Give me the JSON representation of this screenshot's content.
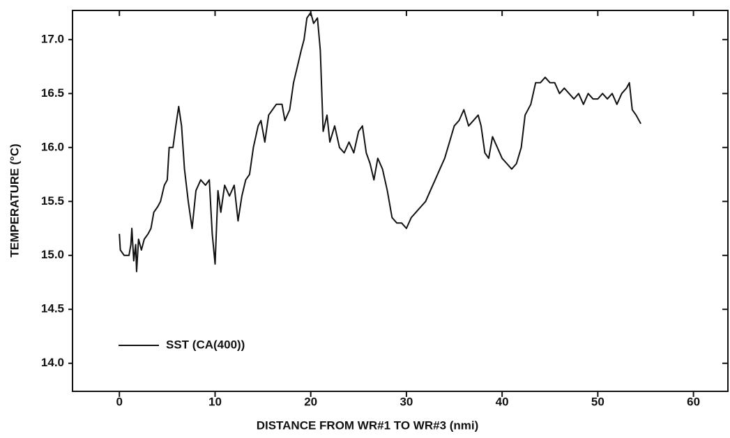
{
  "chart_data": {
    "type": "line",
    "xlabel": "DISTANCE FROM WR#1 TO WR#3 (nmi)",
    "ylabel": "TEMPERATURE (°C)",
    "xlim": [
      -4.9,
      63.6
    ],
    "ylim": [
      13.74,
      17.27
    ],
    "xticks": [
      0,
      10,
      20,
      30,
      40,
      50,
      60
    ],
    "yticks": [
      {
        "value": 14,
        "label": "14.0"
      },
      14.5,
      {
        "value": 15,
        "label": "15.0"
      },
      15.5,
      {
        "value": 16,
        "label": "16.0"
      },
      16.5,
      {
        "value": 17,
        "label": "17.0"
      }
    ],
    "legend": "lower left",
    "series": [
      {
        "name": "SST (CA(400))",
        "color": "#111111",
        "x": [
          0,
          0.1,
          0.5,
          1.0,
          1.2,
          1.3,
          1.5,
          1.7,
          1.8,
          2.0,
          2.3,
          2.6,
          3.0,
          3.3,
          3.6,
          4.0,
          4.3,
          4.7,
          5.0,
          5.2,
          5.6,
          5.9,
          6.2,
          6.5,
          6.8,
          7.2,
          7.6,
          8.0,
          8.5,
          9.0,
          9.4,
          9.7,
          10.0,
          10.3,
          10.6,
          11.0,
          11.5,
          12.0,
          12.4,
          12.8,
          13.2,
          13.6,
          14.0,
          14.5,
          14.8,
          15.2,
          15.6,
          16.0,
          16.4,
          17.0,
          17.3,
          17.8,
          18.2,
          18.6,
          19.0,
          19.3,
          19.6,
          20.0,
          20.3,
          20.7,
          21.0,
          21.3,
          21.7,
          22.0,
          22.5,
          23.0,
          23.5,
          24.0,
          24.5,
          25.0,
          25.4,
          25.8,
          26.2,
          26.6,
          27.0,
          27.5,
          28.0,
          28.5,
          29.0,
          29.5,
          30.0,
          30.5,
          31.0,
          31.5,
          32.0,
          32.5,
          33.0,
          33.5,
          34.0,
          34.5,
          35.0,
          35.5,
          36.0,
          36.5,
          37.0,
          37.5,
          37.8,
          38.2,
          38.6,
          39.0,
          39.5,
          40.0,
          40.5,
          41.0,
          41.5,
          42.0,
          42.4,
          43.0,
          43.5,
          44.0,
          44.5,
          45.0,
          45.5,
          46.0,
          46.5,
          47.0,
          47.5,
          48.0,
          48.5,
          49.0,
          49.5,
          50.0,
          50.5,
          51.0,
          51.5,
          52.0,
          52.5,
          53.0,
          53.3,
          53.6,
          54.0,
          54.5
        ],
        "values": [
          15.2,
          15.05,
          15.0,
          15.0,
          15.1,
          15.25,
          14.95,
          15.1,
          14.85,
          15.15,
          15.05,
          15.15,
          15.2,
          15.25,
          15.4,
          15.45,
          15.5,
          15.65,
          15.7,
          16.0,
          16.0,
          16.2,
          16.38,
          16.2,
          15.8,
          15.5,
          15.25,
          15.6,
          15.7,
          15.65,
          15.7,
          15.2,
          14.92,
          15.6,
          15.4,
          15.65,
          15.55,
          15.65,
          15.32,
          15.55,
          15.7,
          15.75,
          16.0,
          16.2,
          16.25,
          16.05,
          16.3,
          16.35,
          16.4,
          16.4,
          16.25,
          16.35,
          16.6,
          16.75,
          16.9,
          17.0,
          17.2,
          17.25,
          17.15,
          17.2,
          16.9,
          16.15,
          16.3,
          16.05,
          16.2,
          16.0,
          15.95,
          16.05,
          15.95,
          16.15,
          16.2,
          15.95,
          15.85,
          15.7,
          15.9,
          15.8,
          15.6,
          15.35,
          15.3,
          15.3,
          15.25,
          15.35,
          15.4,
          15.45,
          15.5,
          15.6,
          15.7,
          15.8,
          15.9,
          16.05,
          16.2,
          16.25,
          16.35,
          16.2,
          16.25,
          16.3,
          16.2,
          15.95,
          15.9,
          16.1,
          16.0,
          15.9,
          15.85,
          15.8,
          15.85,
          16.0,
          16.3,
          16.4,
          16.6,
          16.6,
          16.65,
          16.6,
          16.6,
          16.5,
          16.55,
          16.5,
          16.45,
          16.5,
          16.4,
          16.5,
          16.45,
          16.45,
          16.5,
          16.45,
          16.5,
          16.4,
          16.5,
          16.55,
          16.6,
          16.35,
          16.3,
          16.22
        ]
      }
    ]
  }
}
